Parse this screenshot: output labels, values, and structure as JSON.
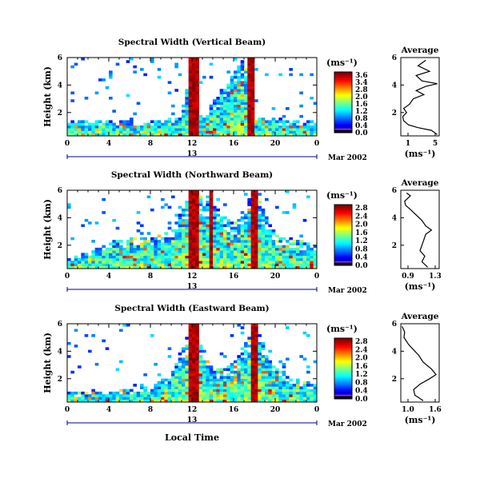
{
  "chart_data": [
    {
      "type": "heatmap",
      "title": "Spectral Width (Vertical Beam)",
      "ylabel": "Height (km)",
      "xlim": [
        0,
        24
      ],
      "ylim": [
        0.3,
        6
      ],
      "xticks": [
        "0",
        "4",
        "8",
        "12",
        "16",
        "20",
        "0"
      ],
      "yticks": [
        "2",
        "4",
        "6"
      ],
      "date_marker": "13",
      "date_label": "Mar 2002",
      "colorbar": {
        "unit": "(ms⁻¹)",
        "min": 0.0,
        "max": 3.6,
        "labels": [
          "3.6",
          "3.4",
          "2.8",
          "2.0",
          "1.6",
          "1.2",
          "0.8",
          "0.4",
          "0.0"
        ]
      },
      "echo_top_km": [
        [
          0,
          1.4
        ],
        [
          4,
          1.4
        ],
        [
          9,
          1.5
        ],
        [
          11,
          1.8
        ],
        [
          12,
          6
        ],
        [
          13,
          1.6
        ],
        [
          17,
          6
        ],
        [
          18,
          1.6
        ],
        [
          22,
          1.5
        ],
        [
          24,
          1.3
        ]
      ],
      "bands": [
        [
          11.7,
          12.7
        ],
        [
          17.4,
          18.1
        ]
      ],
      "average": {
        "title": "Average",
        "xlabel": "(ms⁻¹)",
        "xlim": [
          1,
          5
        ],
        "xticks": [
          "1",
          "5"
        ],
        "ylim": [
          0.3,
          6
        ],
        "yticks": [
          "2",
          "4",
          "6"
        ],
        "profile": [
          [
            4.8,
            0.4
          ],
          [
            4.2,
            0.7
          ],
          [
            2.8,
            0.9
          ],
          [
            1.8,
            1.1
          ],
          [
            1.3,
            1.4
          ],
          [
            1.2,
            1.7
          ],
          [
            1.6,
            2.0
          ],
          [
            1.3,
            2.3
          ],
          [
            1.9,
            2.6
          ],
          [
            2.3,
            3.0
          ],
          [
            3.4,
            3.3
          ],
          [
            2.6,
            3.6
          ],
          [
            3.6,
            3.9
          ],
          [
            4.8,
            4.1
          ],
          [
            3.2,
            4.3
          ],
          [
            2.6,
            4.7
          ],
          [
            4.0,
            5.0
          ],
          [
            2.8,
            5.4
          ],
          [
            3.6,
            5.8
          ]
        ]
      }
    },
    {
      "type": "heatmap",
      "title": "Spectral Width (Northward Beam)",
      "ylabel": "Height (km)",
      "xlim": [
        0,
        24
      ],
      "ylim": [
        0.3,
        6
      ],
      "xticks": [
        "0",
        "4",
        "8",
        "12",
        "16",
        "20",
        "0"
      ],
      "yticks": [
        "2",
        "4",
        "6"
      ],
      "date_marker": "13",
      "date_label": "Mar 2002",
      "colorbar": {
        "unit": "(ms⁻¹)",
        "min": 0.0,
        "max": 2.8,
        "labels": [
          "2.8",
          "2.4",
          "2.0",
          "1.6",
          "1.2",
          "0.8",
          "0.4",
          "0.0"
        ]
      },
      "echo_top_km": [
        [
          0,
          1.2
        ],
        [
          2,
          1.5
        ],
        [
          4,
          2.2
        ],
        [
          6,
          2.6
        ],
        [
          8,
          2.6
        ],
        [
          10,
          3.0
        ],
        [
          12,
          6
        ],
        [
          14,
          5
        ],
        [
          16,
          3.5
        ],
        [
          18,
          6
        ],
        [
          20,
          2.8
        ],
        [
          22,
          2.4
        ],
        [
          24,
          2.0
        ]
      ],
      "bands": [
        [
          11.7,
          12.6
        ],
        [
          13.7,
          14.1
        ],
        [
          17.6,
          18.2
        ]
      ],
      "average": {
        "title": "Average",
        "xlabel": "(ms⁻¹)",
        "xlim": [
          0.9,
          1.3
        ],
        "xticks": [
          "0.9",
          "1.3"
        ],
        "ylim": [
          0.3,
          6
        ],
        "yticks": [
          "2",
          "4",
          "6"
        ],
        "profile": [
          [
            1.18,
            0.4
          ],
          [
            1.12,
            0.8
          ],
          [
            1.15,
            1.2
          ],
          [
            1.1,
            1.6
          ],
          [
            1.12,
            2.0
          ],
          [
            1.14,
            2.4
          ],
          [
            1.16,
            2.8
          ],
          [
            1.22,
            3.1
          ],
          [
            1.16,
            3.4
          ],
          [
            1.12,
            3.8
          ],
          [
            1.06,
            4.2
          ],
          [
            1.0,
            4.6
          ],
          [
            0.95,
            4.9
          ],
          [
            0.94,
            5.2
          ],
          [
            1.0,
            5.6
          ],
          [
            0.96,
            5.8
          ]
        ]
      }
    },
    {
      "type": "heatmap",
      "title": "Spectral Width (Eastward Beam)",
      "ylabel": "Height (km)",
      "xlim": [
        0,
        24
      ],
      "ylim": [
        0.3,
        6
      ],
      "xticks": [
        "0",
        "4",
        "8",
        "12",
        "16",
        "20",
        "0"
      ],
      "yticks": [
        "2",
        "4",
        "6"
      ],
      "date_marker": "13",
      "date_label": "Mar 2002",
      "xlabel": "Local Time",
      "colorbar": {
        "unit": "(ms⁻¹)",
        "min": 0.0,
        "max": 2.8,
        "labels": [
          "2.8",
          "2.4",
          "2.0",
          "1.6",
          "1.2",
          "0.8",
          "0.4",
          "0.0"
        ]
      },
      "echo_top_km": [
        [
          0,
          1.0
        ],
        [
          4,
          1.1
        ],
        [
          8,
          1.4
        ],
        [
          10,
          2.3
        ],
        [
          12,
          6
        ],
        [
          14,
          2.6
        ],
        [
          16,
          3.0
        ],
        [
          18,
          6
        ],
        [
          20,
          2.8
        ],
        [
          22,
          2.0
        ],
        [
          24,
          1.6
        ]
      ],
      "bands": [
        [
          11.8,
          12.6
        ],
        [
          17.6,
          18.2
        ]
      ],
      "average": {
        "title": "Average",
        "xlabel": "(ms⁻¹)",
        "xlim": [
          1.0,
          1.6
        ],
        "xticks": [
          "1.0",
          "1.6"
        ],
        "ylim": [
          0.3,
          6
        ],
        "yticks": [
          "2",
          "4",
          "6"
        ],
        "profile": [
          [
            1.35,
            0.4
          ],
          [
            1.22,
            0.8
          ],
          [
            1.2,
            1.2
          ],
          [
            1.3,
            1.6
          ],
          [
            1.45,
            2.0
          ],
          [
            1.55,
            2.3
          ],
          [
            1.48,
            2.7
          ],
          [
            1.35,
            3.2
          ],
          [
            1.28,
            3.7
          ],
          [
            1.2,
            4.1
          ],
          [
            1.12,
            4.5
          ],
          [
            1.05,
            5.0
          ],
          [
            1.06,
            5.4
          ],
          [
            1.02,
            5.8
          ]
        ]
      }
    }
  ]
}
